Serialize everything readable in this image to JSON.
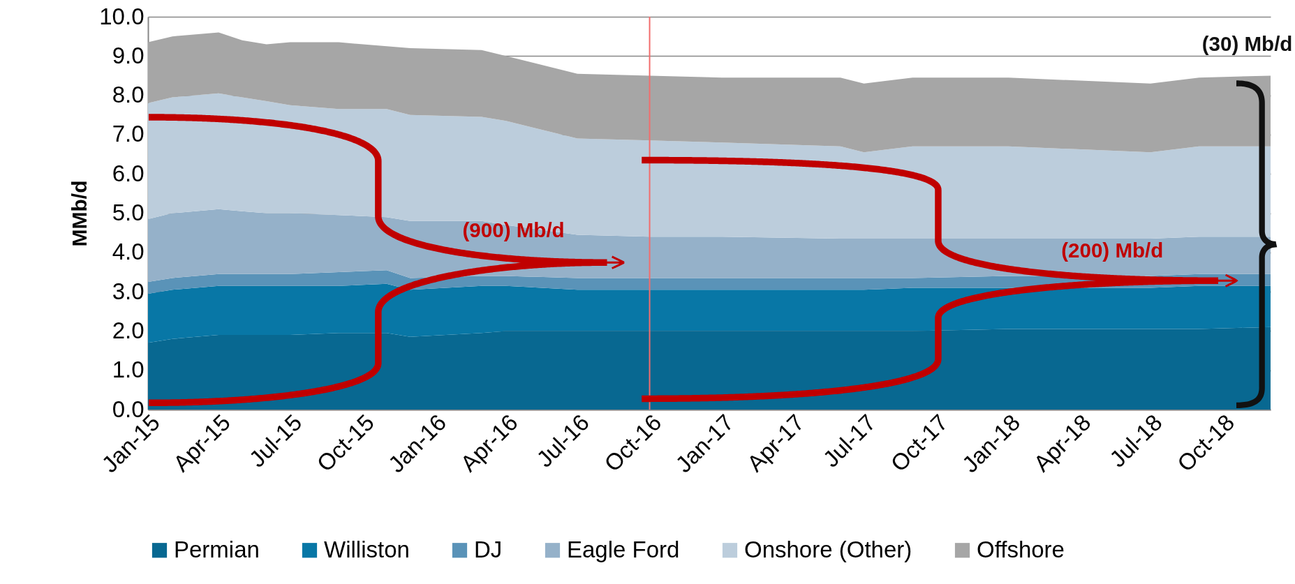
{
  "chart_data": {
    "type": "area",
    "stacked": true,
    "ylabel": "MMb/d",
    "x": [
      "2015-01",
      "2015-02",
      "2015-04",
      "2015-05",
      "2015-06",
      "2015-07",
      "2015-09",
      "2015-11",
      "2015-12",
      "2016-03",
      "2016-04",
      "2016-07",
      "2016-10",
      "2017-01",
      "2017-06",
      "2017-07",
      "2017-09",
      "2018-01",
      "2018-07",
      "2018-09",
      "2018-12"
    ],
    "series": [
      {
        "name": "Permian",
        "color": "#086891",
        "values": [
          1.7,
          1.8,
          1.9,
          1.9,
          1.9,
          1.9,
          1.95,
          1.95,
          1.85,
          1.95,
          2.0,
          2.0,
          2.0,
          2.0,
          2.0,
          2.0,
          2.0,
          2.05,
          2.05,
          2.05,
          2.1
        ]
      },
      {
        "name": "Williston",
        "color": "#0877a6",
        "values": [
          1.25,
          1.25,
          1.25,
          1.25,
          1.25,
          1.25,
          1.2,
          1.25,
          1.2,
          1.2,
          1.15,
          1.05,
          1.05,
          1.05,
          1.05,
          1.05,
          1.1,
          1.05,
          1.05,
          1.1,
          1.05
        ]
      },
      {
        "name": "DJ",
        "color": "#5a93b8",
        "values": [
          0.3,
          0.3,
          0.3,
          0.3,
          0.3,
          0.3,
          0.35,
          0.35,
          0.3,
          0.25,
          0.25,
          0.3,
          0.3,
          0.3,
          0.3,
          0.3,
          0.25,
          0.3,
          0.3,
          0.3,
          0.3
        ]
      },
      {
        "name": "Eagle Ford",
        "color": "#95b1c9",
        "values": [
          1.6,
          1.65,
          1.65,
          1.6,
          1.55,
          1.55,
          1.45,
          1.35,
          1.45,
          1.4,
          1.3,
          1.1,
          1.05,
          1.05,
          1.0,
          1.0,
          1.0,
          0.95,
          0.95,
          0.95,
          0.95
        ]
      },
      {
        "name": "Onshore (Other)",
        "color": "#bccddc",
        "values": [
          2.95,
          2.95,
          2.95,
          2.9,
          2.85,
          2.75,
          2.7,
          2.75,
          2.7,
          2.65,
          2.65,
          2.45,
          2.45,
          2.4,
          2.35,
          2.2,
          2.35,
          2.35,
          2.2,
          2.3,
          2.3
        ]
      },
      {
        "name": "Offshore",
        "color": "#a6a6a6",
        "values": [
          1.55,
          1.55,
          1.55,
          1.45,
          1.45,
          1.6,
          1.7,
          1.6,
          1.7,
          1.7,
          1.65,
          1.65,
          1.65,
          1.65,
          1.75,
          1.75,
          1.75,
          1.75,
          1.75,
          1.75,
          1.8
        ]
      }
    ],
    "xlim": [
      "2015-01",
      "2018-12"
    ],
    "xticks": [
      {
        "value": "2015-01",
        "label": "Jan-15"
      },
      {
        "value": "2015-04",
        "label": "Apr-15"
      },
      {
        "value": "2015-07",
        "label": "Jul-15"
      },
      {
        "value": "2015-10",
        "label": "Oct-15"
      },
      {
        "value": "2016-01",
        "label": "Jan-16"
      },
      {
        "value": "2016-04",
        "label": "Apr-16"
      },
      {
        "value": "2016-07",
        "label": "Jul-16"
      },
      {
        "value": "2016-10",
        "label": "Oct-16"
      },
      {
        "value": "2017-01",
        "label": "Jan-17"
      },
      {
        "value": "2017-04",
        "label": "Apr-17"
      },
      {
        "value": "2017-07",
        "label": "Jul-17"
      },
      {
        "value": "2017-10",
        "label": "Oct-17"
      },
      {
        "value": "2018-01",
        "label": "Jan-18"
      },
      {
        "value": "2018-04",
        "label": "Apr-18"
      },
      {
        "value": "2018-07",
        "label": "Jul-18"
      },
      {
        "value": "2018-10",
        "label": "Oct-18"
      }
    ],
    "ylim": [
      0,
      10
    ],
    "yticks": [
      {
        "value": 0,
        "label": "0.0"
      },
      {
        "value": 1,
        "label": "1.0"
      },
      {
        "value": 2,
        "label": "2.0"
      },
      {
        "value": 3,
        "label": "3.0"
      },
      {
        "value": 4,
        "label": "4.0"
      },
      {
        "value": 5,
        "label": "5.0"
      },
      {
        "value": 6,
        "label": "6.0"
      },
      {
        "value": 7,
        "label": "7.0"
      },
      {
        "value": 8,
        "label": "8.0"
      },
      {
        "value": 9,
        "label": "9.0"
      },
      {
        "value": 10,
        "label": "10.0"
      }
    ],
    "grid": "y",
    "legend": "bottom",
    "ref_lines": [
      {
        "axis": "x",
        "value": "2016-10",
        "color": "#f26d6d"
      }
    ],
    "annotations": [
      "(900) Mb/d",
      "(200) Mb/d",
      "(30) Mb/d"
    ]
  }
}
